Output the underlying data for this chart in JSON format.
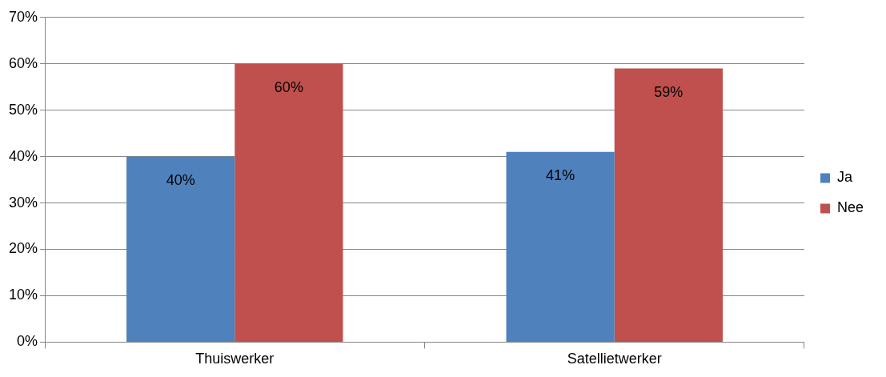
{
  "chart_data": {
    "type": "bar",
    "categories": [
      "Thuiswerker",
      "Satellietwerker"
    ],
    "series": [
      {
        "name": "Ja",
        "color": "#4f81bd",
        "values": [
          40,
          41
        ],
        "value_labels": [
          "40%",
          "41%"
        ]
      },
      {
        "name": "Nee",
        "color": "#c0504d",
        "values": [
          60,
          59
        ],
        "value_labels": [
          "60%",
          "59%"
        ]
      }
    ],
    "ylim": [
      0,
      70
    ],
    "yticks": [
      {
        "value": 0,
        "label": "0%"
      },
      {
        "value": 10,
        "label": "10%"
      },
      {
        "value": 20,
        "label": "20%"
      },
      {
        "value": 30,
        "label": "30%"
      },
      {
        "value": 40,
        "label": "40%"
      },
      {
        "value": 50,
        "label": "50%"
      },
      {
        "value": 60,
        "label": "60%"
      },
      {
        "value": 70,
        "label": "70%"
      }
    ],
    "grid": "y",
    "legend": "right"
  }
}
